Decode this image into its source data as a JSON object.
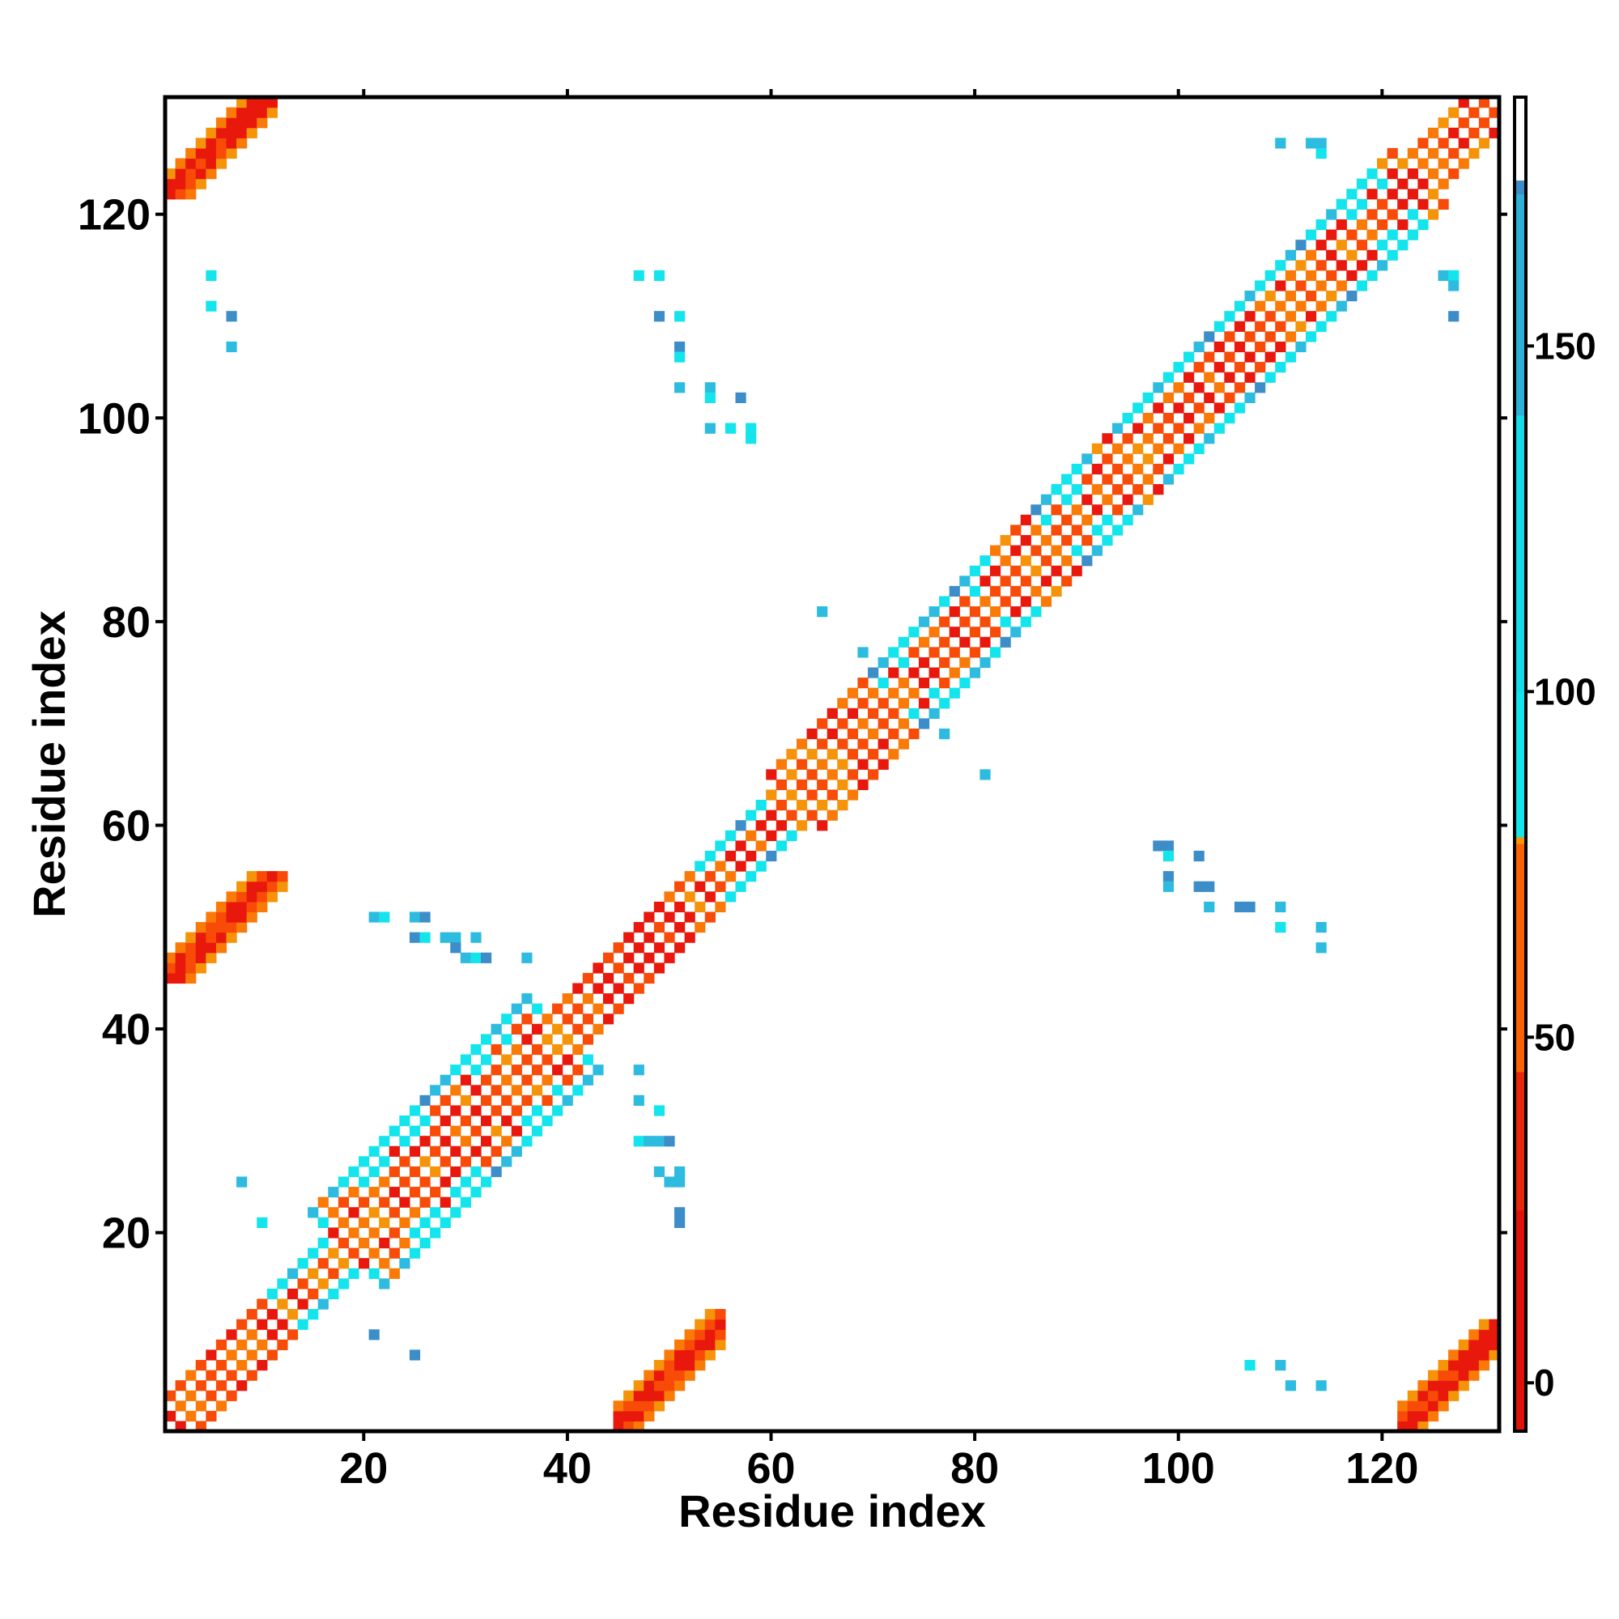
{
  "chart_data": {
    "type": "heatmap",
    "title": "",
    "xlabel": "Residue index",
    "ylabel": "Residue index",
    "xlim": [
      0.5,
      131.5
    ],
    "ylim": [
      0.5,
      131.5
    ],
    "n_residues": 131,
    "x_ticks": [
      20,
      40,
      60,
      80,
      100,
      120
    ],
    "y_ticks": [
      20,
      40,
      60,
      80,
      100,
      120
    ],
    "colorbar": {
      "range": [
        -7,
        186
      ],
      "ticks": [
        0,
        50,
        100,
        150
      ],
      "stops": [
        {
          "value": -7,
          "color": "#e0120c"
        },
        {
          "value": 25,
          "color": "#e8280a"
        },
        {
          "value": 45,
          "color": "#fb6106"
        },
        {
          "value": 78,
          "color": "#f59409"
        },
        {
          "value": 79,
          "color": "#14e4ec"
        },
        {
          "value": 100,
          "color": "#16dbe8"
        },
        {
          "value": 140,
          "color": "#2fb0d8"
        },
        {
          "value": 172,
          "color": "#3d8ec8"
        },
        {
          "value": 174,
          "color": "#ffffff"
        },
        {
          "value": 186,
          "color": "#ffffff"
        }
      ]
    },
    "colors": {
      "red": "#e8180c",
      "orange_red": "#f74b07",
      "orange": "#fa7a08",
      "amber": "#f59409",
      "cyan": "#14e4ec",
      "sky": "#2dbbe0",
      "steel": "#3d8ec8"
    },
    "description": "Symmetric residue-residue contact map; diagonal band of helical/sheet contacts plus off-diagonal contact patches.",
    "off_diagonal_patches": [
      {
        "x": [
          1,
          11
        ],
        "y": [
          122,
          131
        ],
        "color": "red"
      },
      {
        "x": [
          122,
          131
        ],
        "y": [
          1,
          11
        ],
        "color": "red"
      },
      {
        "x": [
          1,
          12
        ],
        "y": [
          45,
          55
        ],
        "color": "red"
      },
      {
        "x": [
          45,
          55
        ],
        "y": [
          1,
          12
        ],
        "color": "red"
      }
    ],
    "sparse_points": [
      [
        5,
        114
      ],
      [
        5,
        111
      ],
      [
        7,
        110
      ],
      [
        7,
        107
      ],
      [
        47,
        114
      ],
      [
        49,
        114
      ],
      [
        49,
        110
      ],
      [
        51,
        110
      ],
      [
        51,
        107
      ],
      [
        51,
        106
      ],
      [
        51,
        103
      ],
      [
        54,
        103
      ],
      [
        54,
        102
      ],
      [
        57,
        102
      ],
      [
        54,
        99
      ],
      [
        56,
        99
      ],
      [
        58,
        99
      ],
      [
        58,
        98
      ],
      [
        8,
        25
      ],
      [
        10,
        21
      ],
      [
        21,
        10
      ],
      [
        25,
        8
      ],
      [
        21,
        51
      ],
      [
        22,
        51
      ],
      [
        25,
        51
      ],
      [
        26,
        51
      ],
      [
        25,
        49
      ],
      [
        26,
        49
      ],
      [
        28,
        49
      ],
      [
        29,
        49
      ],
      [
        29,
        48
      ],
      [
        31,
        49
      ],
      [
        30,
        47
      ],
      [
        31,
        47
      ],
      [
        32,
        47
      ],
      [
        36,
        47
      ],
      [
        47,
        36
      ],
      [
        47,
        33
      ],
      [
        49,
        32
      ],
      [
        47,
        29
      ],
      [
        48,
        29
      ],
      [
        49,
        29
      ],
      [
        50,
        29
      ],
      [
        49,
        26
      ],
      [
        50,
        25
      ],
      [
        51,
        26
      ],
      [
        51,
        25
      ],
      [
        51,
        22
      ],
      [
        51,
        21
      ],
      [
        65,
        81
      ],
      [
        69,
        77
      ],
      [
        77,
        69
      ],
      [
        81,
        65
      ],
      [
        98,
        58
      ],
      [
        99,
        58
      ],
      [
        99,
        57
      ],
      [
        102,
        57
      ],
      [
        99,
        55
      ],
      [
        99,
        54
      ],
      [
        102,
        54
      ],
      [
        103,
        54
      ],
      [
        103,
        52
      ],
      [
        106,
        52
      ],
      [
        107,
        52
      ],
      [
        110,
        52
      ],
      [
        110,
        50
      ],
      [
        114,
        50
      ],
      [
        114,
        48
      ],
      [
        107,
        7
      ],
      [
        110,
        7
      ],
      [
        111,
        5
      ],
      [
        114,
        5
      ],
      [
        110,
        127
      ],
      [
        113,
        127
      ],
      [
        114,
        127
      ],
      [
        114,
        126
      ],
      [
        126,
        114
      ],
      [
        127,
        114
      ],
      [
        127,
        113
      ],
      [
        127,
        110
      ]
    ]
  }
}
